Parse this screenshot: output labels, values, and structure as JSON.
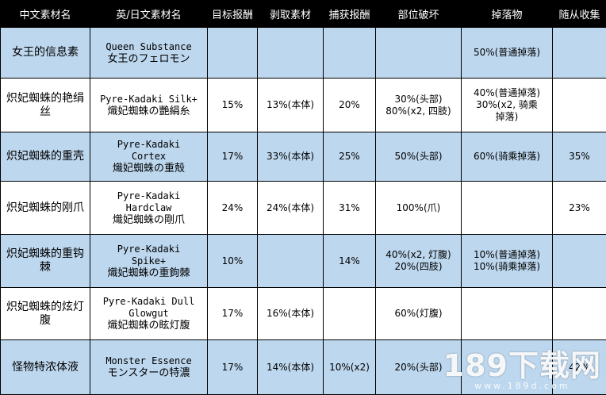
{
  "headers": [
    "中文素材名",
    "英/日文素材名",
    "目标报酬",
    "剥取素材",
    "捕获报酬",
    "部位破坏",
    "掉落物",
    "随从收集"
  ],
  "rows": [
    {
      "style": "blue",
      "height": 64,
      "zh": "女王的信息素",
      "en": [
        "Queen Substance",
        "女王のフェロモン"
      ],
      "target": "",
      "carve": "",
      "capture": "",
      "break": [],
      "drop": [
        "50%(普通掉落)"
      ],
      "palico": ""
    },
    {
      "style": "white",
      "height": 68,
      "zh": "炽妃蜘蛛的艳绢丝",
      "en": [
        "Pyre-Kadaki Silk+",
        "熾妃蜘蛛の艷絹糸"
      ],
      "target": "15%",
      "carve": "13%(本体)",
      "capture": "20%",
      "break": [
        "30%(头部)",
        "80%(x2, 四肢)"
      ],
      "drop": [
        "40%(普通掉落)",
        "30%(x2, 骑乘",
        "掉落)"
      ],
      "palico": ""
    },
    {
      "style": "blue",
      "height": 62,
      "zh": "炽妃蜘蛛的重壳",
      "en": [
        "Pyre-Kadaki",
        "Cortex",
        "熾妃蜘蛛の重殻"
      ],
      "target": "17%",
      "carve": "33%(本体)",
      "capture": "25%",
      "break": [
        "50%(头部)"
      ],
      "drop": [
        "60%(骑乘掉落)"
      ],
      "palico": "35%"
    },
    {
      "style": "white",
      "height": 67,
      "zh": "炽妃蜘蛛的刚爪",
      "en": [
        "Pyre-Kadaki",
        "Hardclaw",
        "熾妃蜘蛛の剛爪"
      ],
      "target": "24%",
      "carve": "24%(本体)",
      "capture": "31%",
      "break": [
        "100%(爪)"
      ],
      "drop": [],
      "palico": "23%"
    },
    {
      "style": "blue",
      "height": 67,
      "zh": "炽妃蜘蛛的重钩棘",
      "en": [
        "Pyre-Kadaki",
        "Spike+",
        "熾妃蜘蛛の重鉤棘"
      ],
      "target": "10%",
      "carve": "",
      "capture": "14%",
      "break": [
        "40%(x2, 灯腹)",
        "20%(四肢)"
      ],
      "drop": [
        "10%(普通掉落)",
        "10%(骑乘掉落)"
      ],
      "palico": ""
    },
    {
      "style": "white",
      "height": 66,
      "zh": "炽妃蜘蛛的炫灯腹",
      "en": [
        "Pyre-Kadaki Dull",
        "Glowgut",
        "熾妃蜘蛛の眩灯腹"
      ],
      "target": "17%",
      "carve": "16%(本体)",
      "capture": "",
      "break": [
        "60%(灯腹)"
      ],
      "drop": [],
      "palico": ""
    },
    {
      "style": "blue",
      "height": 69,
      "zh": "怪物特浓体液",
      "en": [
        "Monster Essence",
        "モンスターの特濃"
      ],
      "target": "17%",
      "carve": "14%(本体)",
      "capture": "10%(x2)",
      "break": [
        "20%(头部)"
      ],
      "drop": [],
      "palico": "42%"
    }
  ],
  "watermark": {
    "main": "189下载网",
    "url": "www.189d.com"
  }
}
